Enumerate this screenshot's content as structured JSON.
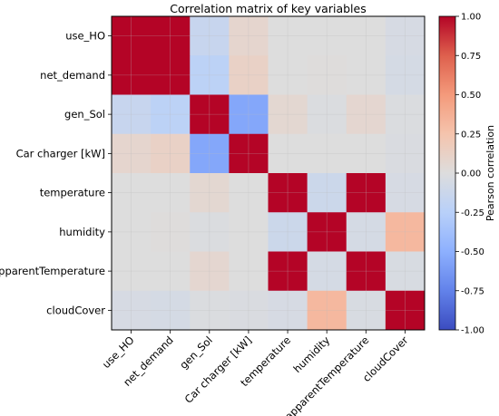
{
  "chart_data": {
    "type": "heatmap",
    "title": "Correlation matrix of key variables",
    "variables": [
      "use_HO",
      "net_demand",
      "gen_Sol",
      "Car charger [kW]",
      "temperature",
      "humidity",
      "apparentTemperature",
      "cloudCover"
    ],
    "matrix": [
      [
        1.0,
        1.0,
        -0.15,
        0.08,
        0.0,
        0.0,
        0.0,
        -0.05
      ],
      [
        1.0,
        1.0,
        -0.22,
        0.12,
        0.0,
        0.01,
        0.0,
        -0.06
      ],
      [
        -0.15,
        -0.22,
        1.0,
        -0.55,
        0.06,
        -0.02,
        0.07,
        -0.02
      ],
      [
        0.08,
        0.12,
        -0.55,
        1.0,
        0.0,
        0.0,
        0.0,
        -0.03
      ],
      [
        0.0,
        0.0,
        0.06,
        0.0,
        1.0,
        -0.12,
        1.0,
        -0.05
      ],
      [
        0.0,
        0.01,
        -0.02,
        0.0,
        -0.12,
        1.0,
        -0.06,
        0.32
      ],
      [
        0.0,
        0.0,
        0.07,
        0.0,
        1.0,
        -0.06,
        1.0,
        -0.04
      ],
      [
        -0.05,
        -0.06,
        -0.02,
        -0.03,
        -0.05,
        0.32,
        -0.04,
        1.0
      ]
    ],
    "colorbar": {
      "label": "Pearson correlation",
      "range": [
        -1.0,
        1.0
      ],
      "ticks": [
        "-1.00",
        "-0.75",
        "-0.50",
        "-0.25",
        "0.00",
        "0.25",
        "0.50",
        "0.75",
        "1.00"
      ],
      "colormap": "coolwarm"
    },
    "grid": true
  }
}
